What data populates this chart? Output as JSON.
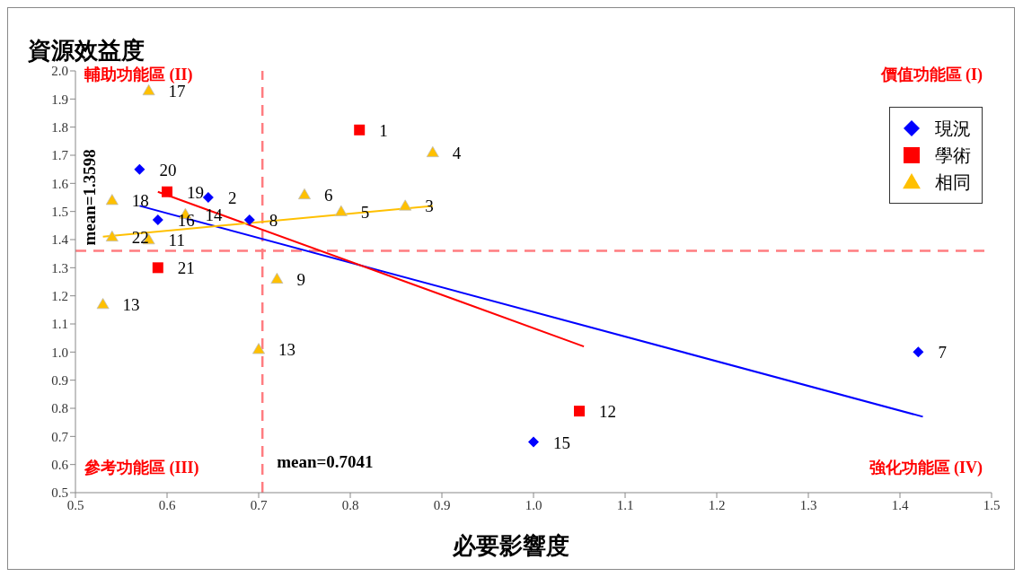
{
  "chart_data": {
    "type": "scatter",
    "ylabel": "資源效益度",
    "xlabel": "必要影響度",
    "xlim": [
      0.5,
      1.5
    ],
    "xticks": [
      0.5,
      0.6,
      0.7,
      0.8,
      0.9,
      {
        "value": 1,
        "label": "1.0"
      },
      1.1,
      1.2,
      1.3,
      1.4,
      1.5
    ],
    "ylim": [
      0.5,
      2.0
    ],
    "yticks": [
      0.5,
      0.6,
      0.7,
      0.8,
      0.9,
      {
        "value": 1,
        "label": "1.0"
      },
      1.1,
      1.2,
      1.3,
      1.4,
      1.5,
      1.6,
      1.7,
      1.8,
      1.9,
      {
        "value": 2,
        "label": "2.0"
      }
    ],
    "grid": false,
    "legend": "top right",
    "series": [
      {
        "name": "現況",
        "color": "#0000ff",
        "marker": "diamond",
        "x": [
          0.57,
          0.645,
          0.59,
          0.69,
          1.42,
          1.0
        ],
        "values": [
          1.65,
          1.55,
          1.47,
          1.47,
          1.0,
          0.68
        ]
      },
      {
        "name": "學術",
        "color": "#ff0000",
        "marker": "square",
        "x": [
          0.81,
          0.6,
          0.59,
          1.05
        ],
        "values": [
          1.79,
          1.57,
          1.3,
          0.79
        ]
      },
      {
        "name": "相同",
        "color": "#ffc000",
        "marker": "triangle",
        "x": [
          0.58,
          0.89,
          0.75,
          0.54,
          0.62,
          0.79,
          0.86,
          0.54,
          0.58,
          0.72,
          0.53,
          0.7
        ],
        "values": [
          1.93,
          1.71,
          1.56,
          1.54,
          1.49,
          1.5,
          1.52,
          1.41,
          1.4,
          1.26,
          1.17,
          1.01
        ]
      },
      {
        "type": "line",
        "color": "#0000ff",
        "x": [
          0.57,
          1.425
        ],
        "values": [
          1.52,
          0.77
        ]
      },
      {
        "type": "line",
        "color": "#ff0000",
        "x": [
          0.59,
          1.055
        ],
        "values": [
          1.57,
          1.02
        ]
      },
      {
        "type": "line",
        "color": "#ffc000",
        "x": [
          0.53,
          0.89
        ],
        "values": [
          1.41,
          1.52
        ]
      }
    ],
    "ref_lines": [
      {
        "axis": "x",
        "value": 0.7041,
        "label": "mean=0.7041",
        "color": "#ff7c80",
        "line_style": "dashed"
      },
      {
        "axis": "y",
        "value": 1.3598,
        "label": "mean=1.3598",
        "color": "#ff7c80",
        "line_style": "dashed"
      }
    ],
    "annotations": [
      "輔助功能區 (II)",
      "價值功能區 (I)",
      "參考功能區 (III)",
      "強化功能區 (IV)",
      {
        "text": "20",
        "x": 0.57,
        "y": 1.65
      },
      {
        "text": "2",
        "x": 0.645,
        "y": 1.55
      },
      {
        "text": "16",
        "x": 0.59,
        "y": 1.47
      },
      {
        "text": "8",
        "x": 0.69,
        "y": 1.47
      },
      {
        "text": "7",
        "x": 1.42,
        "y": 1.0
      },
      {
        "text": "15",
        "x": 1.0,
        "y": 0.68
      },
      {
        "text": "1",
        "x": 0.81,
        "y": 1.79
      },
      {
        "text": "19",
        "x": 0.6,
        "y": 1.57
      },
      {
        "text": "21",
        "x": 0.59,
        "y": 1.3
      },
      {
        "text": "12",
        "x": 1.05,
        "y": 0.79
      },
      {
        "text": "17",
        "x": 0.58,
        "y": 1.93
      },
      {
        "text": "4",
        "x": 0.89,
        "y": 1.71
      },
      {
        "text": "6",
        "x": 0.75,
        "y": 1.56
      },
      {
        "text": "18",
        "x": 0.54,
        "y": 1.54
      },
      {
        "text": "14",
        "x": 0.62,
        "y": 1.49
      },
      {
        "text": "5",
        "x": 0.79,
        "y": 1.5
      },
      {
        "text": "3",
        "x": 0.86,
        "y": 1.52
      },
      {
        "text": "22",
        "x": 0.54,
        "y": 1.41
      },
      {
        "text": "11",
        "x": 0.58,
        "y": 1.4
      },
      {
        "text": "9",
        "x": 0.72,
        "y": 1.26
      },
      {
        "text": "13",
        "x": 0.53,
        "y": 1.17
      },
      {
        "text": "13",
        "x": 0.7,
        "y": 1.01
      }
    ]
  }
}
